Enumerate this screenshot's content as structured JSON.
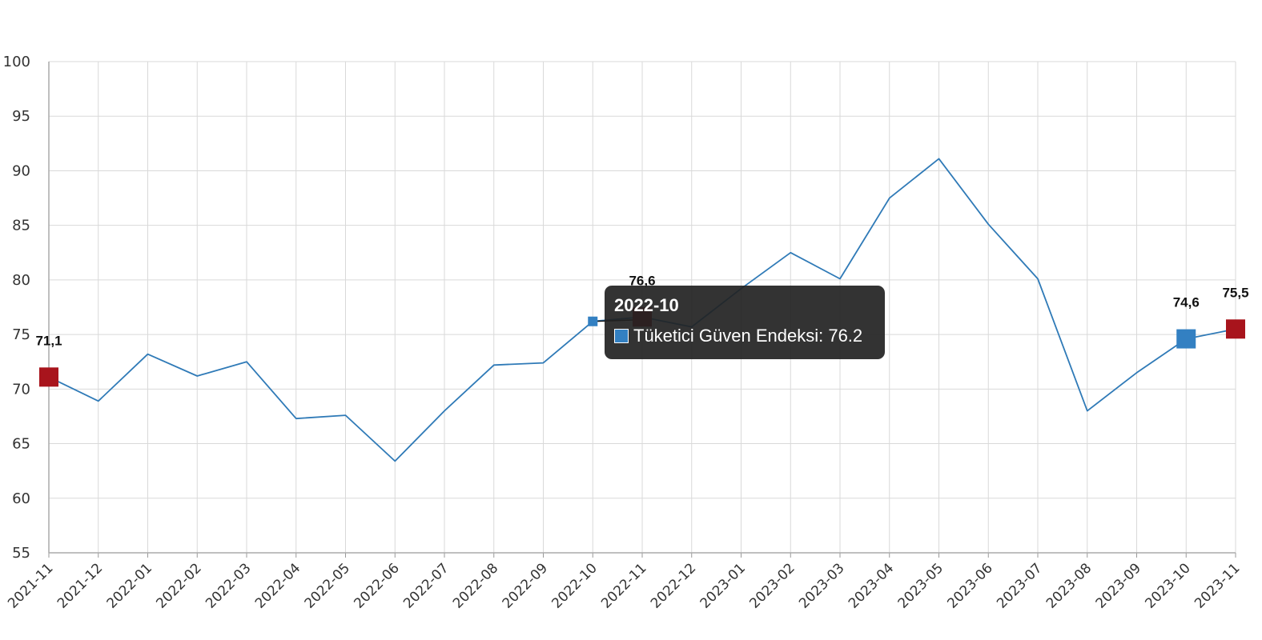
{
  "chart_data": {
    "type": "line",
    "categories": [
      "2021-11",
      "2021-12",
      "2022-01",
      "2022-02",
      "2022-03",
      "2022-04",
      "2022-05",
      "2022-06",
      "2022-07",
      "2022-08",
      "2022-09",
      "2022-10",
      "2022-11",
      "2022-12",
      "2023-01",
      "2023-02",
      "2023-03",
      "2023-04",
      "2023-05",
      "2023-06",
      "2023-07",
      "2023-08",
      "2023-09",
      "2023-10",
      "2023-11"
    ],
    "series": [
      {
        "name": "Tüketici Güven Endeksi",
        "values": [
          71.1,
          68.9,
          73.2,
          71.2,
          72.5,
          67.3,
          67.6,
          63.4,
          68.0,
          72.2,
          72.4,
          76.2,
          76.6,
          75.7,
          79.2,
          82.5,
          80.1,
          87.5,
          91.1,
          85.1,
          80.1,
          68.0,
          71.5,
          74.6,
          75.5
        ],
        "color": "#2f7ab7"
      }
    ],
    "data_labels": [
      {
        "index": 0,
        "text": "71,1",
        "color": "#a8141c"
      },
      {
        "index": 12,
        "text": "76,6",
        "color": "#a8141c"
      },
      {
        "index": 23,
        "text": "74,6",
        "color": "#3380c2"
      },
      {
        "index": 24,
        "text": "75,5",
        "color": "#a8141c"
      }
    ],
    "ylim": [
      55,
      100
    ],
    "yticks": [
      55,
      60,
      65,
      70,
      75,
      80,
      85,
      90,
      95,
      100
    ],
    "grid": true,
    "title": "",
    "xlabel": "",
    "ylabel": ""
  },
  "tooltip": {
    "title": "2022-10",
    "series_label": "Tüketici Güven Endeksi: 76.2",
    "swatch_color": "#3380c2",
    "highlight_index": 11
  }
}
